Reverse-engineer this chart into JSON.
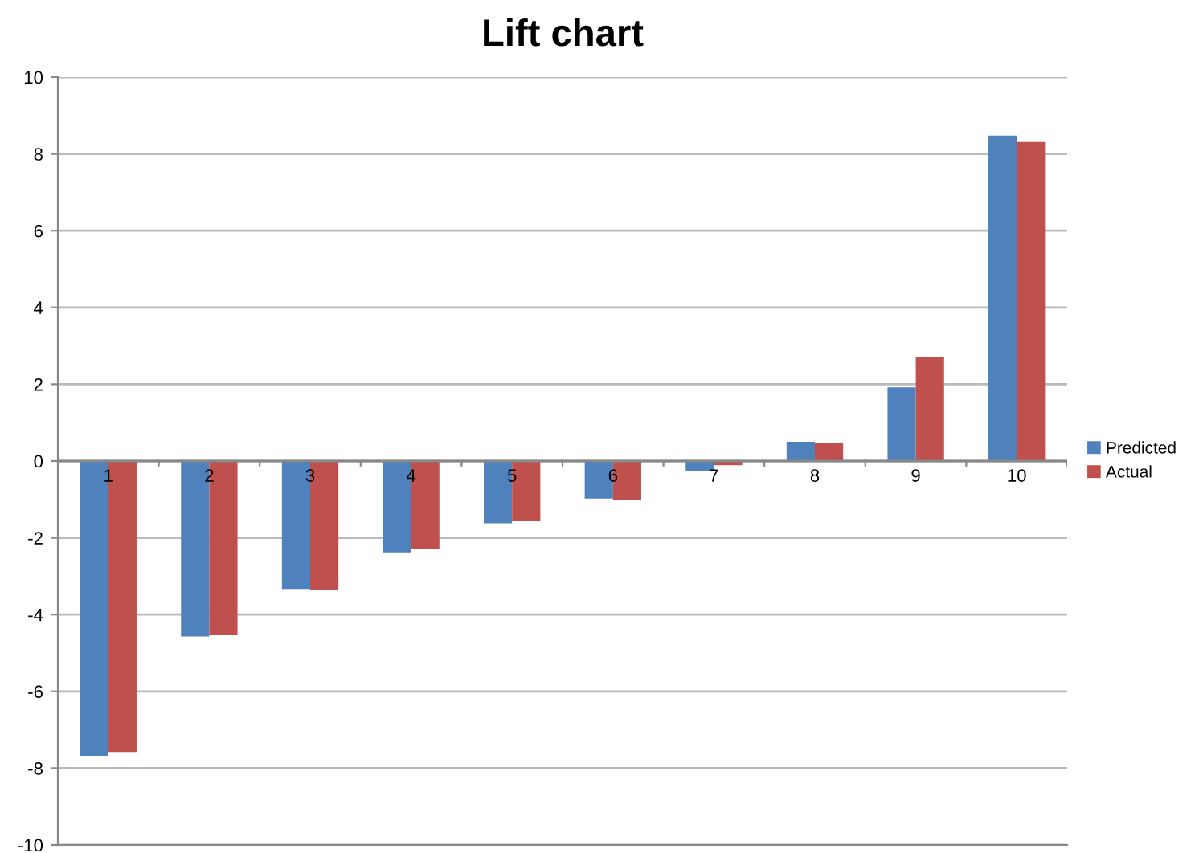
{
  "chart_data": {
    "type": "bar",
    "title": "Lift chart",
    "categories": [
      "1",
      "2",
      "3",
      "4",
      "5",
      "6",
      "7",
      "8",
      "9",
      "10"
    ],
    "series": [
      {
        "name": "Predicted",
        "color": "#4f81bd",
        "values": [
          -7.68,
          -4.57,
          -3.33,
          -2.38,
          -1.62,
          -0.98,
          -0.25,
          0.5,
          1.92,
          8.48
        ]
      },
      {
        "name": "Actual",
        "color": "#c0504d",
        "values": [
          -7.58,
          -4.53,
          -3.36,
          -2.29,
          -1.57,
          -1.02,
          -0.11,
          0.46,
          2.7,
          8.31
        ]
      }
    ],
    "ylim": [
      -10,
      10
    ],
    "yticks": [
      -10,
      -8,
      -6,
      -4,
      -2,
      0,
      2,
      4,
      6,
      8,
      10
    ],
    "grid": "y",
    "legend": "right"
  }
}
